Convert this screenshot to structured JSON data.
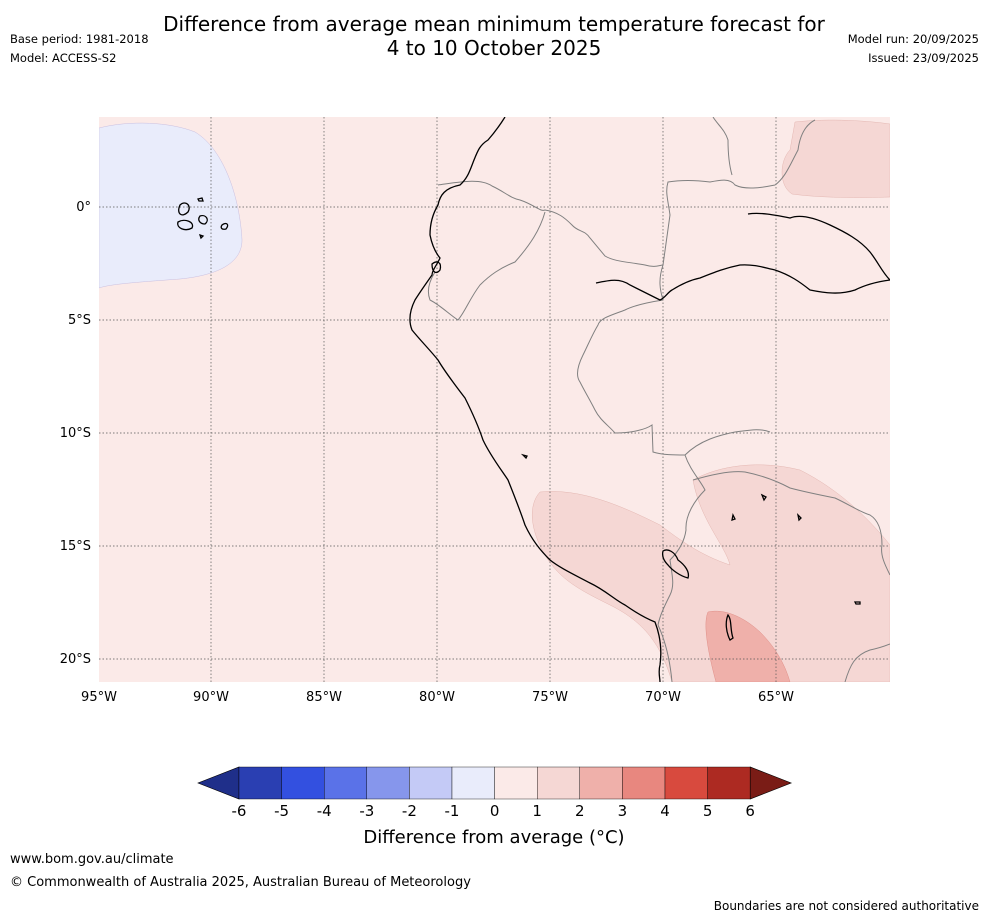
{
  "title_line1": "Difference from average mean minimum temperature forecast for",
  "title_line2": "4 to 10 October 2025",
  "base_period": "Base period: 1981-2018",
  "model": "Model: ACCESS-S2",
  "model_run": "Model run: 20/09/2025",
  "issued": "Issued: 23/09/2025",
  "lat_labels": [
    "0°",
    "5°S",
    "10°S",
    "15°S",
    "20°S"
  ],
  "lon_labels": [
    "95°W",
    "90°W",
    "85°W",
    "80°W",
    "75°W",
    "70°W",
    "65°W"
  ],
  "colorbar": {
    "labels": [
      "-6",
      "-5",
      "-4",
      "-3",
      "-2",
      "-1",
      "0",
      "1",
      "2",
      "3",
      "4",
      "5",
      "6"
    ],
    "colors": [
      "#1f2f8a",
      "#2a3fb2",
      "#3350e0",
      "#5a72e8",
      "#8696ec",
      "#c4caf6",
      "#e9ecfb",
      "#fbeae8",
      "#f5d7d4",
      "#efb0aa",
      "#e8877f",
      "#d84a3e",
      "#ad2a22",
      "#7a1c16"
    ],
    "title": "Difference from average (°C)"
  },
  "footer_url": "www.bom.gov.au/climate",
  "footer_copyright": "© Commonwealth of Australia 2025, Australian Bureau of Meteorology",
  "footer_note": "Boundaries are not considered authoritative"
}
